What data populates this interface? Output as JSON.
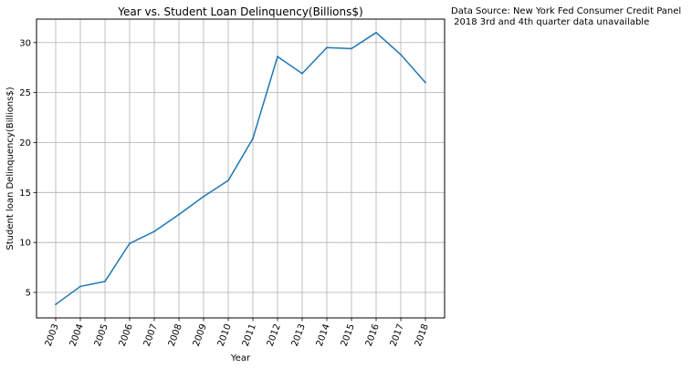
{
  "chart_data": {
    "type": "line",
    "title": "Year vs. Student Loan Delinquency(Billions$)",
    "xlabel": "Year",
    "ylabel": "Student loan Delinquency(Billions$)",
    "annotation_lines": [
      "Data Source: New York Fed Consumer Credit Panel",
      " 2018 3rd and 4th quarter data unavailable"
    ],
    "categories": [
      "2003",
      "2004",
      "2005",
      "2006",
      "2007",
      "2008",
      "2009",
      "2010",
      "2011",
      "2012",
      "2013",
      "2014",
      "2015",
      "2016",
      "2017",
      "2018"
    ],
    "series": [
      {
        "values": [
          3.8,
          5.6,
          6.1,
          9.9,
          11.1,
          12.8,
          14.6,
          16.2,
          20.4,
          28.6,
          26.9,
          29.5,
          29.4,
          31.0,
          28.8,
          26.0
        ]
      }
    ],
    "yticks": [
      5,
      10,
      15,
      20,
      25,
      30
    ],
    "ylim": [
      2.45,
      32.35
    ],
    "grid": true,
    "x_tick_rotation": 70,
    "colors": {
      "line": "#1f77b4",
      "grid": "#b0b0b0",
      "axes": "#000000"
    }
  }
}
